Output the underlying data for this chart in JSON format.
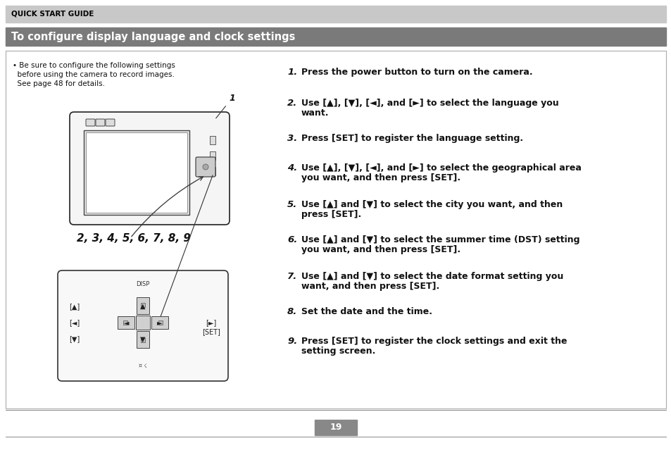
{
  "page_bg": "#ffffff",
  "header_bg": "#c8c8c8",
  "header_text": "QUICK START GUIDE",
  "title_bg": "#7a7a7a",
  "title_text": "To configure display language and clock settings",
  "title_text_color": "#ffffff",
  "body_border": "#aaaaaa",
  "bullet_line1": "• Be sure to configure the following settings",
  "bullet_line2": "  before using the camera to record images.",
  "bullet_line3": "  See page 48 for details.",
  "steps": [
    {
      "num": "1.",
      "text": "Press the power button to turn on the camera."
    },
    {
      "num": "2.",
      "text": "Use [▲], [▼], [◄], and [►] to select the language you\n     want."
    },
    {
      "num": "3.",
      "text": "Press [SET] to register the language setting."
    },
    {
      "num": "4.",
      "text": "Use [▲], [▼], [◄], and [►] to select the geographical area\n     you want, and then press [SET]."
    },
    {
      "num": "5.",
      "text": "Use [▲] and [▼] to select the city you want, and then\n     press [SET]."
    },
    {
      "num": "6.",
      "text": "Use [▲] and [▼] to select the summer time (DST) setting\n     you want, and then press [SET]."
    },
    {
      "num": "7.",
      "text": "Use [▲] and [▼] to select the date format setting you\n     want, and then press [SET]."
    },
    {
      "num": "8.",
      "text": "Set the date and the time."
    },
    {
      "num": "9.",
      "text": "Press [SET] to register the clock settings and exit the\n     setting screen."
    }
  ],
  "footer_bg": "#888888",
  "footer_text": "19",
  "footer_text_color": "#ffffff",
  "line_color": "#888888"
}
